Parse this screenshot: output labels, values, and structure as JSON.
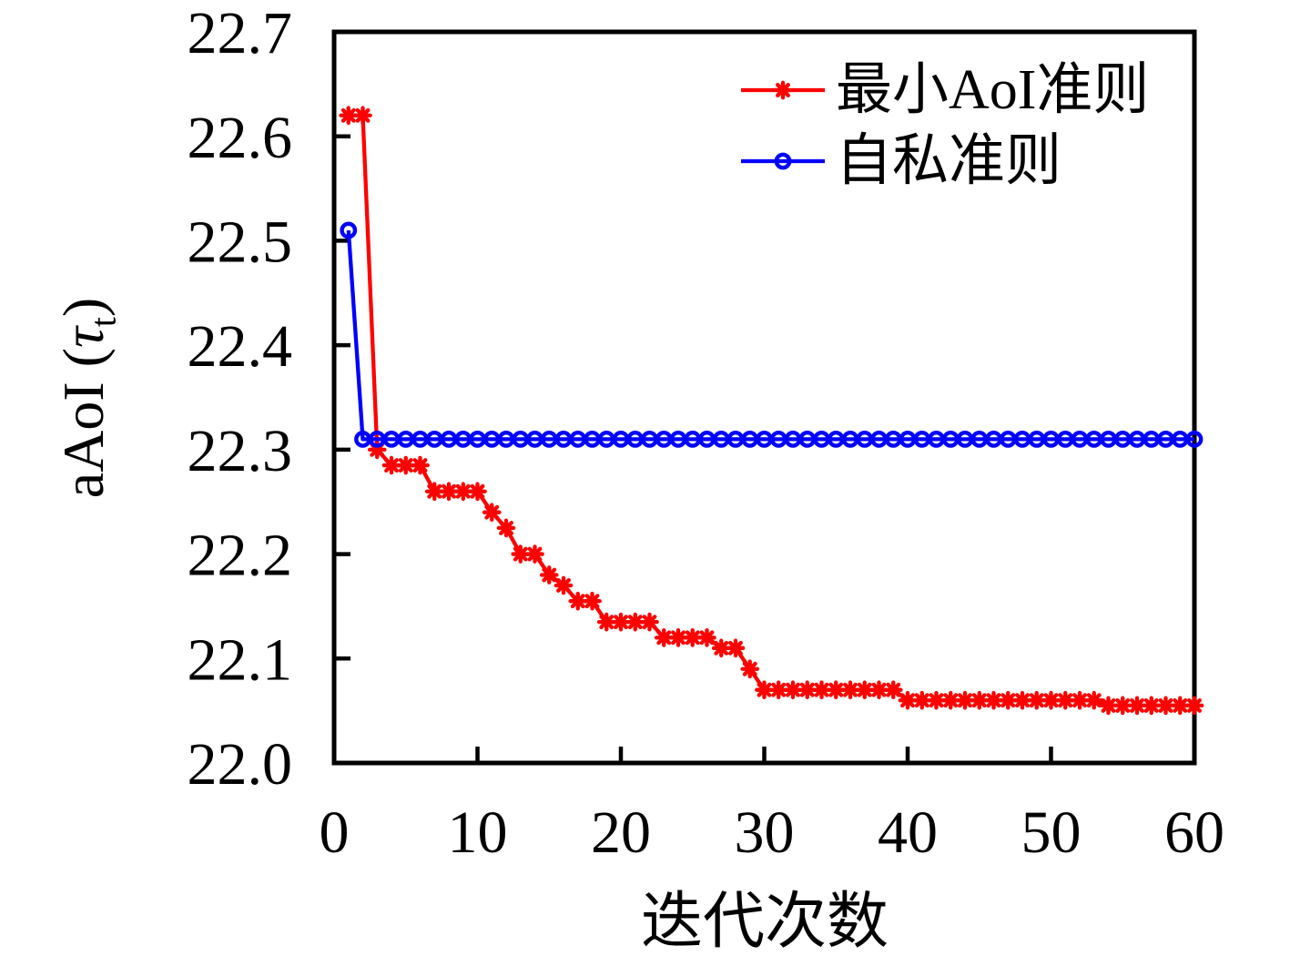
{
  "figure": {
    "background": "#ffffff",
    "axis_color": "#000000",
    "text_color": "#000000"
  },
  "labels": {
    "xlabel": "迭代次数",
    "ylabel_prefix": "aAoI (",
    "ylabel_tau": "τ",
    "ylabel_subscript": "t",
    "ylabel_suffix": ")"
  },
  "chart_data": {
    "type": "line",
    "title": "",
    "xlabel": "迭代次数",
    "ylabel": "aAoI (τ_t)",
    "xlim": [
      0,
      60
    ],
    "ylim": [
      22.0,
      22.7
    ],
    "x_ticks": [
      0,
      10,
      20,
      30,
      40,
      50,
      60
    ],
    "x_tick_labels": [
      "0",
      "10",
      "20",
      "30",
      "40",
      "50",
      "60"
    ],
    "y_ticks": [
      22.0,
      22.1,
      22.2,
      22.3,
      22.4,
      22.5,
      22.6,
      22.7
    ],
    "y_tick_labels": [
      "22.0",
      "22.1",
      "22.2",
      "22.3",
      "22.4",
      "22.5",
      "22.6",
      "22.7"
    ],
    "grid": false,
    "legend_position": "top-right-inside",
    "series": [
      {
        "name": "最小AoI准则",
        "color": "#ff0000",
        "marker": "asterisk",
        "line_width": 4.3,
        "x": [
          1,
          2,
          3,
          4,
          5,
          6,
          7,
          8,
          9,
          10,
          11,
          12,
          13,
          14,
          15,
          16,
          17,
          18,
          19,
          20,
          21,
          22,
          23,
          24,
          25,
          26,
          27,
          28,
          29,
          30,
          31,
          32,
          33,
          34,
          35,
          36,
          37,
          38,
          39,
          40,
          41,
          42,
          43,
          44,
          45,
          46,
          47,
          48,
          49,
          50,
          51,
          52,
          53,
          54,
          55,
          56,
          57,
          58,
          59,
          60
        ],
        "values": [
          22.62,
          22.62,
          22.3,
          22.285,
          22.285,
          22.285,
          22.26,
          22.26,
          22.26,
          22.26,
          22.24,
          22.225,
          22.2,
          22.2,
          22.18,
          22.17,
          22.155,
          22.155,
          22.135,
          22.135,
          22.135,
          22.135,
          22.12,
          22.12,
          22.12,
          22.12,
          22.11,
          22.11,
          22.09,
          22.07,
          22.07,
          22.07,
          22.07,
          22.07,
          22.07,
          22.07,
          22.07,
          22.07,
          22.07,
          22.06,
          22.06,
          22.06,
          22.06,
          22.06,
          22.06,
          22.06,
          22.06,
          22.06,
          22.06,
          22.06,
          22.06,
          22.06,
          22.06,
          22.055,
          22.055,
          22.055,
          22.055,
          22.055,
          22.055,
          22.055
        ]
      },
      {
        "name": "自私准则",
        "color": "#0000ff",
        "marker": "circle",
        "line_width": 4.3,
        "x": [
          1,
          2,
          3,
          4,
          5,
          6,
          7,
          8,
          9,
          10,
          11,
          12,
          13,
          14,
          15,
          16,
          17,
          18,
          19,
          20,
          21,
          22,
          23,
          24,
          25,
          26,
          27,
          28,
          29,
          30,
          31,
          32,
          33,
          34,
          35,
          36,
          37,
          38,
          39,
          40,
          41,
          42,
          43,
          44,
          45,
          46,
          47,
          48,
          49,
          50,
          51,
          52,
          53,
          54,
          55,
          56,
          57,
          58,
          59,
          60
        ],
        "values": [
          22.51,
          22.31,
          22.31,
          22.31,
          22.31,
          22.31,
          22.31,
          22.31,
          22.31,
          22.31,
          22.31,
          22.31,
          22.31,
          22.31,
          22.31,
          22.31,
          22.31,
          22.31,
          22.31,
          22.31,
          22.31,
          22.31,
          22.31,
          22.31,
          22.31,
          22.31,
          22.31,
          22.31,
          22.31,
          22.31,
          22.31,
          22.31,
          22.31,
          22.31,
          22.31,
          22.31,
          22.31,
          22.31,
          22.31,
          22.31,
          22.31,
          22.31,
          22.31,
          22.31,
          22.31,
          22.31,
          22.31,
          22.31,
          22.31,
          22.31,
          22.31,
          22.31,
          22.31,
          22.31,
          22.31,
          22.31,
          22.31,
          22.31,
          22.31,
          22.31
        ]
      }
    ]
  }
}
